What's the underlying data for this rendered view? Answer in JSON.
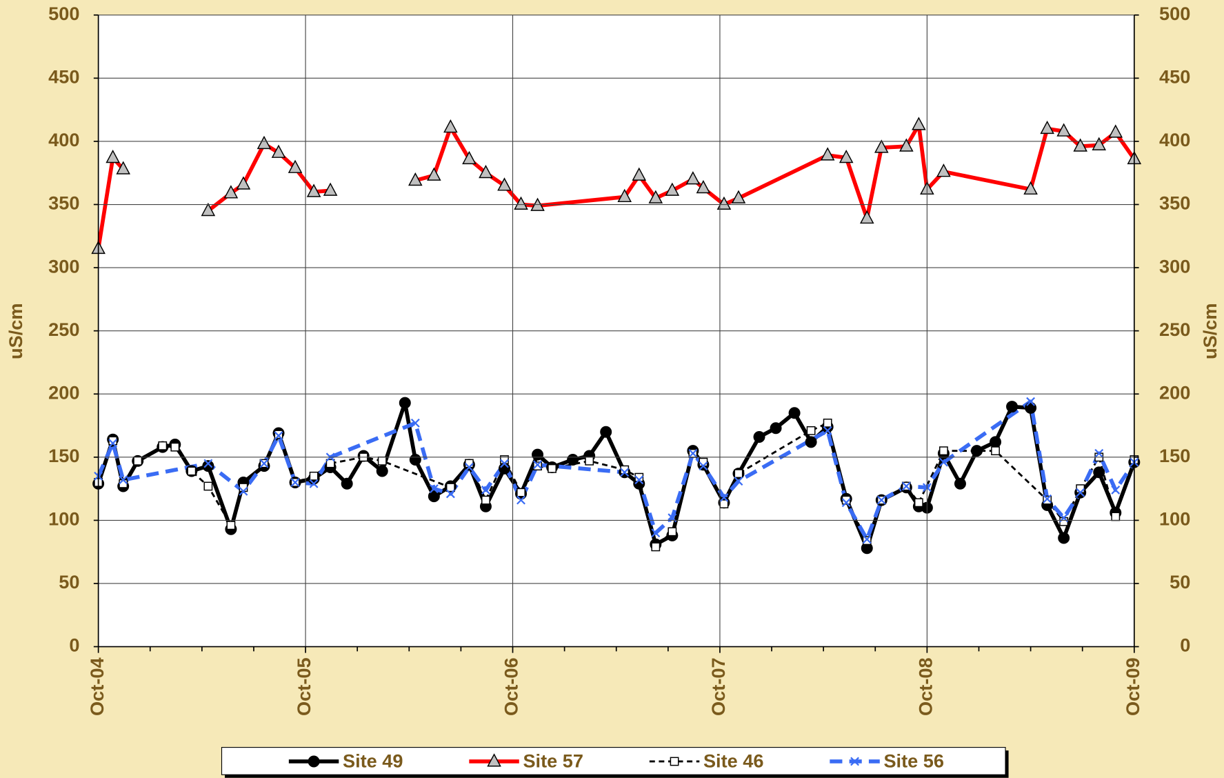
{
  "chart_data": {
    "type": "line",
    "ylabel": "uS/cm",
    "y2label": "uS/cm",
    "xlim": [
      2004.75,
      2009.75
    ],
    "xticks": [
      {
        "value": 2004.75,
        "label": "Oct-04"
      },
      {
        "value": 2005.75,
        "label": "Oct-05"
      },
      {
        "value": 2006.75,
        "label": "Oct-06"
      },
      {
        "value": 2007.75,
        "label": "Oct-07"
      },
      {
        "value": 2008.75,
        "label": "Oct-08"
      },
      {
        "value": 2009.75,
        "label": "Oct-09"
      }
    ],
    "ylim": [
      0,
      500
    ],
    "yticks": [
      0,
      50,
      100,
      150,
      200,
      250,
      300,
      350,
      400,
      450,
      500
    ],
    "y2lim": [
      0,
      500
    ],
    "y2ticks": [
      0,
      50,
      100,
      150,
      200,
      250,
      300,
      350,
      400,
      450,
      500
    ],
    "grid": true,
    "legend": "bottom",
    "series": [
      {
        "name": "Site 49",
        "color": "#000000",
        "marker": "circle",
        "line_style": "solid",
        "x": [
          2004.75,
          2004.82,
          2004.87,
          2004.94,
          2005.06,
          2005.12,
          2005.2,
          2005.28,
          2005.39,
          2005.45,
          2005.55,
          2005.62,
          2005.7,
          2005.79,
          2005.87,
          2005.95,
          2006.03,
          2006.12,
          2006.23,
          2006.28,
          2006.37,
          2006.45,
          2006.54,
          2006.62,
          2006.71,
          2006.79,
          2006.87,
          2006.94,
          2007.04,
          2007.12,
          2007.2,
          2007.29,
          2007.36,
          2007.44,
          2007.52,
          2007.62,
          2007.67,
          2007.77,
          2007.84,
          2007.94,
          2008.02,
          2008.11,
          2008.19,
          2008.27,
          2008.36,
          2008.46,
          2008.53,
          2008.65,
          2008.71,
          2008.75,
          2008.83,
          2008.91,
          2008.99,
          2009.08,
          2009.16,
          2009.25,
          2009.33,
          2009.41,
          2009.49,
          2009.58,
          2009.66,
          2009.75
        ],
        "values": [
          129,
          164,
          127,
          147,
          158,
          160,
          139,
          143,
          93,
          130,
          143,
          169,
          130,
          133,
          142,
          129,
          151,
          139,
          193,
          148,
          119,
          127,
          144,
          111,
          141,
          121,
          152,
          142,
          148,
          151,
          170,
          138,
          129,
          81,
          88,
          155,
          144,
          114,
          137,
          166,
          173,
          185,
          162,
          174,
          117,
          78,
          116,
          126,
          111,
          110,
          153,
          129,
          155,
          162,
          190,
          189,
          112,
          86,
          122,
          138,
          106,
          146
        ]
      },
      {
        "name": "Site 57",
        "color": "#ff0000",
        "marker": "triangle",
        "line_style": "solid",
        "x": [
          2004.75,
          2004.82,
          2004.87,
          null,
          2005.28,
          2005.39,
          2005.45,
          2005.55,
          2005.62,
          2005.7,
          2005.79,
          2005.87,
          null,
          2006.28,
          2006.37,
          2006.45,
          2006.54,
          2006.62,
          2006.71,
          2006.79,
          2006.87,
          2007.29,
          2007.36,
          2007.44,
          2007.52,
          2007.62,
          2007.67,
          2007.77,
          2007.84,
          2008.27,
          2008.36,
          2008.46,
          2008.53,
          2008.65,
          2008.71,
          2008.75,
          2008.83,
          2009.25,
          2009.33,
          2009.41,
          2009.49,
          2009.58,
          2009.66,
          2009.75
        ],
        "values": [
          315,
          387,
          378,
          null,
          345,
          359,
          366,
          398,
          391,
          379,
          360,
          361,
          null,
          369,
          373,
          411,
          386,
          375,
          365,
          350,
          349,
          356,
          373,
          355,
          361,
          370,
          363,
          350,
          355,
          389,
          387,
          339,
          395,
          396,
          413,
          362,
          376,
          362,
          410,
          408,
          396,
          397,
          407,
          386
        ]
      },
      {
        "name": "Site 46",
        "color": "#000000",
        "marker": "square",
        "line_style": "dashed",
        "x": [
          2004.75,
          2004.82,
          2004.87,
          2004.94,
          2005.06,
          2005.12,
          2005.2,
          2005.28,
          2005.39,
          2005.45,
          2005.55,
          2005.62,
          2005.7,
          2005.79,
          2005.87,
          2006.03,
          2006.12,
          2006.45,
          2006.54,
          2006.62,
          2006.71,
          2006.79,
          2006.87,
          2006.94,
          2007.12,
          2007.29,
          2007.36,
          2007.44,
          2007.52,
          2007.62,
          2007.67,
          2007.77,
          2007.84,
          2008.19,
          2008.27,
          2008.36,
          2008.46,
          2008.53,
          2008.65,
          2008.71,
          2008.83,
          2009.08,
          2009.33,
          2009.41,
          2009.49,
          2009.58,
          2009.66,
          2009.75
        ],
        "values": [
          130,
          163,
          129,
          147,
          159,
          158,
          139,
          127,
          96,
          126,
          145,
          168,
          130,
          135,
          145,
          150,
          147,
          126,
          145,
          116,
          148,
          122,
          143,
          141,
          147,
          140,
          134,
          79,
          91,
          153,
          146,
          113,
          137,
          171,
          177,
          116,
          84,
          116,
          127,
          114,
          155,
          155,
          116,
          99,
          125,
          150,
          103,
          148
        ]
      },
      {
        "name": "Site 56",
        "color": "#3a6cf4",
        "marker": "x",
        "line_style": "long-dashed",
        "x": [
          2004.75,
          2004.82,
          2004.87,
          2005.28,
          2005.45,
          2005.55,
          2005.62,
          2005.7,
          2005.79,
          2005.87,
          2006.28,
          2006.37,
          2006.45,
          2006.54,
          2006.62,
          2006.71,
          2006.79,
          2006.87,
          2007.29,
          2007.36,
          2007.44,
          2007.52,
          2007.62,
          2007.67,
          2007.77,
          2007.84,
          2008.27,
          2008.36,
          2008.46,
          2008.53,
          2008.65,
          2008.75,
          2008.83,
          2009.25,
          2009.33,
          2009.41,
          2009.49,
          2009.58,
          2009.66,
          2009.75
        ],
        "values": [
          135,
          161,
          132,
          145,
          123,
          145,
          167,
          130,
          129,
          150,
          177,
          125,
          121,
          142,
          124,
          145,
          116,
          144,
          138,
          132,
          90,
          102,
          153,
          143,
          118,
          131,
          171,
          114,
          85,
          116,
          127,
          126,
          146,
          194,
          117,
          102,
          122,
          153,
          124,
          146
        ]
      }
    ]
  }
}
